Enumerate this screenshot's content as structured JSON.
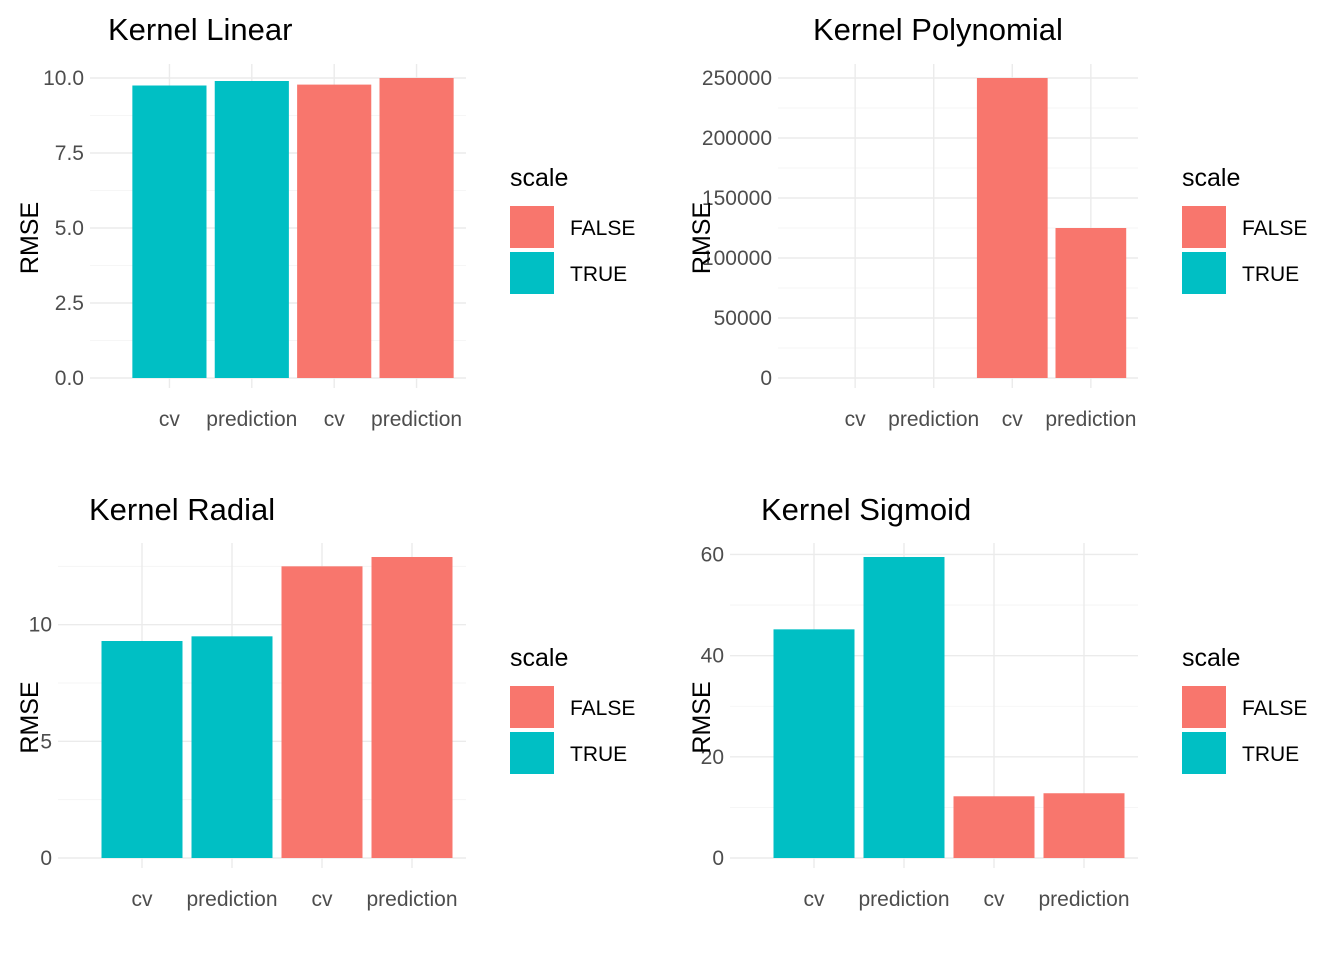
{
  "colors": {
    "FALSE": "#F8766D",
    "TRUE": "#00BFC4"
  },
  "chart_data": [
    {
      "type": "bar",
      "title": "Kernel Linear",
      "ylabel": "RMSE",
      "xlabel": "",
      "categories": [
        "cv",
        "prediction",
        "cv",
        "prediction"
      ],
      "scale": [
        "TRUE",
        "TRUE",
        "FALSE",
        "FALSE"
      ],
      "values": [
        9.75,
        9.9,
        9.78,
        10.0
      ],
      "ylim": [
        0,
        10.0
      ],
      "yticks": [
        0,
        2.5,
        5,
        7.5,
        10
      ],
      "ytick_labels": [
        "0.0",
        "2.5",
        "5.0",
        "7.5",
        "10.0"
      ],
      "legend": {
        "title": "scale",
        "entries": [
          "FALSE",
          "TRUE"
        ],
        "position": "right"
      },
      "grid": true
    },
    {
      "type": "bar",
      "title": "Kernel Polynomial",
      "ylabel": "RMSE",
      "xlabel": "",
      "categories": [
        "cv",
        "prediction",
        "cv",
        "prediction"
      ],
      "scale": [
        "TRUE",
        "TRUE",
        "FALSE",
        "FALSE"
      ],
      "values": [
        0,
        0,
        250000,
        125000
      ],
      "ylim": [
        0,
        250000
      ],
      "yticks": [
        0,
        50000,
        100000,
        150000,
        200000,
        250000
      ],
      "ytick_labels": [
        "0",
        "50000",
        "100000",
        "150000",
        "200000",
        "250000"
      ],
      "legend": {
        "title": "scale",
        "entries": [
          "FALSE",
          "TRUE"
        ],
        "position": "right"
      },
      "grid": true
    },
    {
      "type": "bar",
      "title": "Kernel Radial",
      "ylabel": "RMSE",
      "xlabel": "",
      "categories": [
        "cv",
        "prediction",
        "cv",
        "prediction"
      ],
      "scale": [
        "TRUE",
        "TRUE",
        "FALSE",
        "FALSE"
      ],
      "values": [
        9.3,
        9.5,
        12.5,
        12.9
      ],
      "ylim": [
        0,
        12.9
      ],
      "yticks": [
        0,
        5,
        10
      ],
      "ytick_labels": [
        "0",
        "5",
        "10"
      ],
      "legend": {
        "title": "scale",
        "entries": [
          "FALSE",
          "TRUE"
        ],
        "position": "right"
      },
      "grid": true
    },
    {
      "type": "bar",
      "title": "Kernel Sigmoid",
      "ylabel": "RMSE",
      "xlabel": "",
      "categories": [
        "cv",
        "prediction",
        "cv",
        "prediction"
      ],
      "scale": [
        "TRUE",
        "TRUE",
        "FALSE",
        "FALSE"
      ],
      "values": [
        45.2,
        59.5,
        12.2,
        12.8
      ],
      "ylim": [
        0,
        59.5
      ],
      "yticks": [
        0,
        20,
        40,
        60
      ],
      "ytick_labels": [
        "0",
        "20",
        "40",
        "60"
      ],
      "legend": {
        "title": "scale",
        "entries": [
          "FALSE",
          "TRUE"
        ],
        "position": "right"
      },
      "grid": true
    }
  ]
}
